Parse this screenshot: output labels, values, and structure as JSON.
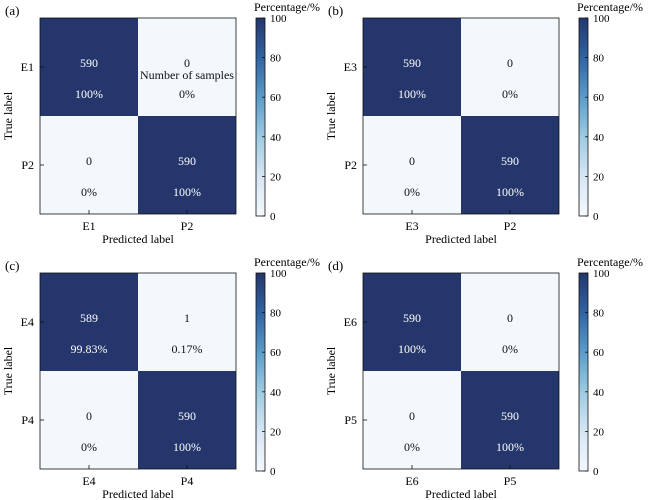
{
  "colors": {
    "high": "#24366b",
    "low": "#f3f8fd",
    "text_on_dark": "#ffffff",
    "text_on_light": "#111111"
  },
  "chart_data": [
    {
      "type": "heatmap",
      "panel_label": "(a)",
      "colorbar_label": "Percentage/%",
      "colorbar_ticks": [
        "0",
        "20",
        "40",
        "60",
        "80",
        "100"
      ],
      "colorbar_range": [
        0,
        100
      ],
      "xlabel": "Predicted label",
      "ylabel": "True label",
      "rows": [
        "E1",
        "P2"
      ],
      "cols": [
        "E1",
        "P2"
      ],
      "counts": [
        [
          "590",
          "0"
        ],
        [
          "0",
          "590"
        ]
      ],
      "percent_labels": [
        [
          "100%",
          "0%"
        ],
        [
          "0%",
          "100%"
        ]
      ],
      "percent_values": [
        [
          100,
          0
        ],
        [
          0,
          100
        ]
      ],
      "annotation": "Number of samples"
    },
    {
      "type": "heatmap",
      "panel_label": "(b)",
      "colorbar_label": "Percentage/%",
      "colorbar_ticks": [
        "0",
        "20",
        "40",
        "60",
        "80",
        "100"
      ],
      "colorbar_range": [
        0,
        100
      ],
      "xlabel": "Predicted label",
      "ylabel": "True label",
      "rows": [
        "E3",
        "P2"
      ],
      "cols": [
        "E3",
        "P2"
      ],
      "counts": [
        [
          "590",
          "0"
        ],
        [
          "0",
          "590"
        ]
      ],
      "percent_labels": [
        [
          "100%",
          "0%"
        ],
        [
          "0%",
          "100%"
        ]
      ],
      "percent_values": [
        [
          100,
          0
        ],
        [
          0,
          100
        ]
      ]
    },
    {
      "type": "heatmap",
      "panel_label": "(c)",
      "colorbar_label": "Percentage/%",
      "colorbar_ticks": [
        "0",
        "20",
        "40",
        "60",
        "80",
        "100"
      ],
      "colorbar_range": [
        0,
        100
      ],
      "xlabel": "Predicted label",
      "ylabel": "True label",
      "rows": [
        "E4",
        "P4"
      ],
      "cols": [
        "E4",
        "P4"
      ],
      "counts": [
        [
          "589",
          "1"
        ],
        [
          "0",
          "590"
        ]
      ],
      "percent_labels": [
        [
          "99.83%",
          "0.17%"
        ],
        [
          "0%",
          "100%"
        ]
      ],
      "percent_values": [
        [
          99.83,
          0.17
        ],
        [
          0,
          100
        ]
      ]
    },
    {
      "type": "heatmap",
      "panel_label": "(d)",
      "colorbar_label": "Percentage/%",
      "colorbar_ticks": [
        "0",
        "20",
        "40",
        "60",
        "80",
        "100"
      ],
      "colorbar_range": [
        0,
        100
      ],
      "xlabel": "Predicted label",
      "ylabel": "True label",
      "rows": [
        "E6",
        "P5"
      ],
      "cols": [
        "E6",
        "P5"
      ],
      "counts": [
        [
          "590",
          "0"
        ],
        [
          "0",
          "590"
        ]
      ],
      "percent_labels": [
        [
          "100%",
          "0%"
        ],
        [
          "0%",
          "100%"
        ]
      ],
      "percent_values": [
        [
          100,
          0
        ],
        [
          0,
          100
        ]
      ]
    }
  ]
}
